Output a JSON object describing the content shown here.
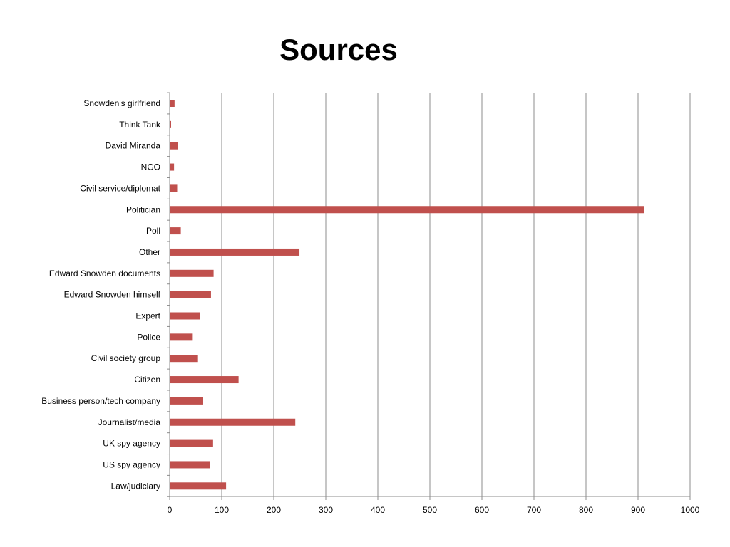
{
  "chart_data": {
    "type": "bar",
    "orientation": "horizontal",
    "title": "Sources",
    "xlabel": "",
    "ylabel": "",
    "xlim": [
      0,
      1000
    ],
    "xticks": [
      "0",
      "100",
      "200",
      "300",
      "400",
      "500",
      "600",
      "700",
      "800",
      "900",
      "1000"
    ],
    "grid": "vertical",
    "legend": "none",
    "bar_color": "#c0504d",
    "categories": [
      "Snowden's girlfriend",
      "Think Tank",
      "David Miranda",
      "NGO",
      "Civil service/diplomat",
      "Politician",
      "Poll",
      "Other",
      "Edward Snowden documents",
      "Edward Snowden himself",
      "Expert",
      "Police",
      "Civil society group",
      "Citizen",
      "Business person/tech company",
      "Journalist/media",
      "UK spy agency",
      "US spy agency",
      "Law/judiciary"
    ],
    "values": [
      8,
      1,
      15,
      7,
      13,
      910,
      20,
      248,
      83,
      78,
      57,
      43,
      53,
      131,
      63,
      240,
      82,
      76,
      107
    ]
  }
}
